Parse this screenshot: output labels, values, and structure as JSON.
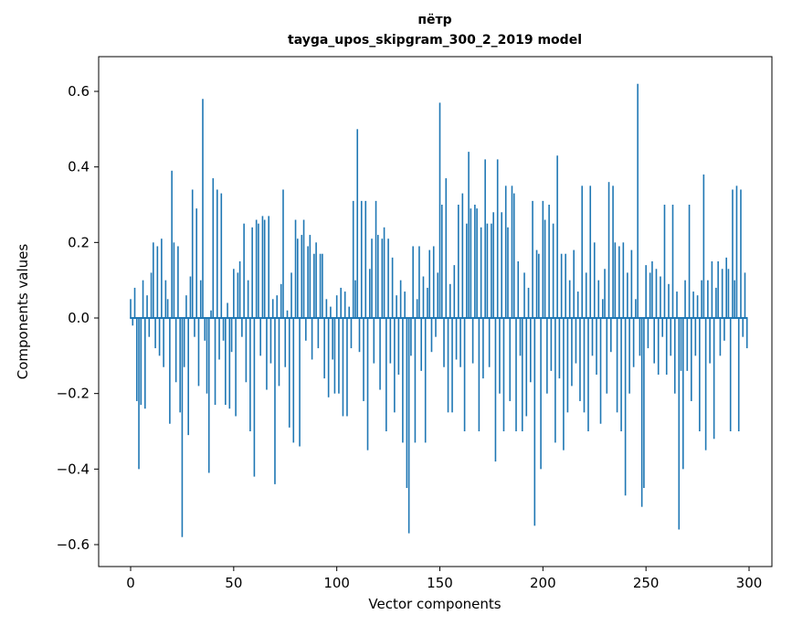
{
  "chart_data": {
    "type": "bar",
    "title_line1": "пётр",
    "title_line2": "tayga_upos_skipgram_300_2_2019 model",
    "xlabel": "Vector components",
    "ylabel": "Components values",
    "xlim": [
      -15,
      315
    ],
    "ylim": [
      -0.65,
      0.68
    ],
    "x_ticks": [
      0,
      50,
      100,
      150,
      200,
      250,
      300
    ],
    "y_ticks": [
      {
        "v": -0.6,
        "label": "−0.6"
      },
      {
        "v": -0.4,
        "label": "−0.4"
      },
      {
        "v": -0.2,
        "label": "−0.2"
      },
      {
        "v": 0.0,
        "label": "0.0"
      },
      {
        "v": 0.2,
        "label": "0.2"
      },
      {
        "v": 0.4,
        "label": "0.4"
      },
      {
        "v": 0.6,
        "label": "0.6"
      }
    ],
    "bar_color": "#1f77b4",
    "grid": false,
    "legend": "none",
    "values": [
      0.05,
      -0.02,
      0.08,
      -0.22,
      -0.4,
      -0.23,
      0.1,
      -0.24,
      0.06,
      -0.05,
      0.12,
      0.2,
      -0.08,
      0.19,
      -0.1,
      0.21,
      -0.13,
      0.1,
      0.05,
      -0.28,
      0.39,
      0.2,
      -0.17,
      0.19,
      -0.25,
      -0.58,
      -0.13,
      0.06,
      -0.31,
      0.11,
      0.34,
      -0.05,
      0.29,
      -0.18,
      0.1,
      0.58,
      -0.06,
      -0.2,
      -0.41,
      0.02,
      0.37,
      -0.23,
      0.34,
      -0.11,
      0.33,
      -0.06,
      -0.23,
      0.04,
      -0.24,
      -0.09,
      0.13,
      -0.26,
      0.12,
      0.15,
      -0.05,
      0.25,
      -0.17,
      0.1,
      -0.3,
      0.24,
      -0.42,
      0.26,
      0.25,
      -0.1,
      0.27,
      0.26,
      -0.19,
      0.27,
      -0.12,
      0.05,
      -0.44,
      0.06,
      -0.18,
      0.09,
      0.34,
      -0.13,
      0.02,
      -0.29,
      0.12,
      -0.33,
      0.26,
      0.21,
      -0.34,
      0.22,
      0.26,
      -0.06,
      0.19,
      0.22,
      -0.11,
      0.17,
      0.2,
      -0.08,
      0.17,
      0.17,
      -0.16,
      0.05,
      -0.21,
      0.03,
      -0.11,
      -0.2,
      0.06,
      -0.2,
      0.08,
      -0.26,
      0.07,
      -0.26,
      0.03,
      -0.08,
      0.31,
      0.1,
      0.5,
      -0.09,
      0.31,
      -0.22,
      0.31,
      -0.35,
      0.13,
      0.21,
      -0.12,
      0.31,
      0.22,
      -0.19,
      0.21,
      0.24,
      -0.3,
      0.21,
      -0.12,
      0.16,
      -0.25,
      0.06,
      -0.15,
      0.1,
      -0.33,
      0.07,
      -0.45,
      -0.57,
      -0.1,
      0.19,
      -0.33,
      0.05,
      0.19,
      -0.14,
      0.11,
      -0.33,
      0.08,
      0.18,
      -0.09,
      0.19,
      -0.05,
      0.12,
      0.57,
      0.3,
      -0.13,
      0.37,
      -0.25,
      0.09,
      -0.25,
      0.14,
      -0.11,
      0.3,
      -0.13,
      0.33,
      -0.3,
      0.25,
      0.44,
      0.29,
      -0.12,
      0.3,
      0.29,
      -0.3,
      0.24,
      -0.16,
      0.42,
      0.25,
      -0.13,
      0.25,
      0.28,
      -0.38,
      0.42,
      -0.2,
      0.28,
      -0.3,
      0.35,
      0.24,
      -0.22,
      0.35,
      0.33,
      -0.3,
      0.15,
      -0.1,
      -0.3,
      0.12,
      -0.26,
      0.08,
      -0.17,
      0.31,
      -0.55,
      0.18,
      0.17,
      -0.4,
      0.31,
      0.26,
      -0.2,
      0.3,
      -0.14,
      0.25,
      -0.33,
      0.43,
      -0.16,
      0.17,
      -0.35,
      0.17,
      -0.25,
      0.1,
      -0.18,
      0.18,
      -0.12,
      0.07,
      -0.22,
      0.35,
      -0.25,
      0.12,
      -0.3,
      0.35,
      -0.1,
      0.2,
      -0.15,
      0.1,
      -0.28,
      0.05,
      0.13,
      -0.2,
      0.36,
      -0.09,
      0.35,
      0.2,
      -0.25,
      0.19,
      -0.3,
      0.2,
      -0.47,
      0.12,
      -0.2,
      0.18,
      -0.13,
      0.05,
      0.62,
      -0.1,
      -0.5,
      -0.45,
      0.14,
      -0.08,
      0.12,
      0.15,
      -0.12,
      0.13,
      -0.15,
      0.11,
      -0.05,
      0.3,
      -0.15,
      0.09,
      -0.1,
      0.3,
      -0.2,
      0.07,
      -0.56,
      -0.14,
      -0.4,
      0.1,
      -0.14,
      0.3,
      -0.22,
      0.07,
      -0.1,
      0.06,
      -0.3,
      0.1,
      0.38,
      -0.35,
      0.1,
      -0.12,
      0.15,
      -0.32,
      0.08,
      0.15,
      -0.1,
      0.13,
      -0.06,
      0.16,
      0.13,
      -0.3,
      0.34,
      0.1,
      0.35,
      -0.3,
      0.34,
      -0.05,
      0.12,
      -0.08
    ]
  }
}
